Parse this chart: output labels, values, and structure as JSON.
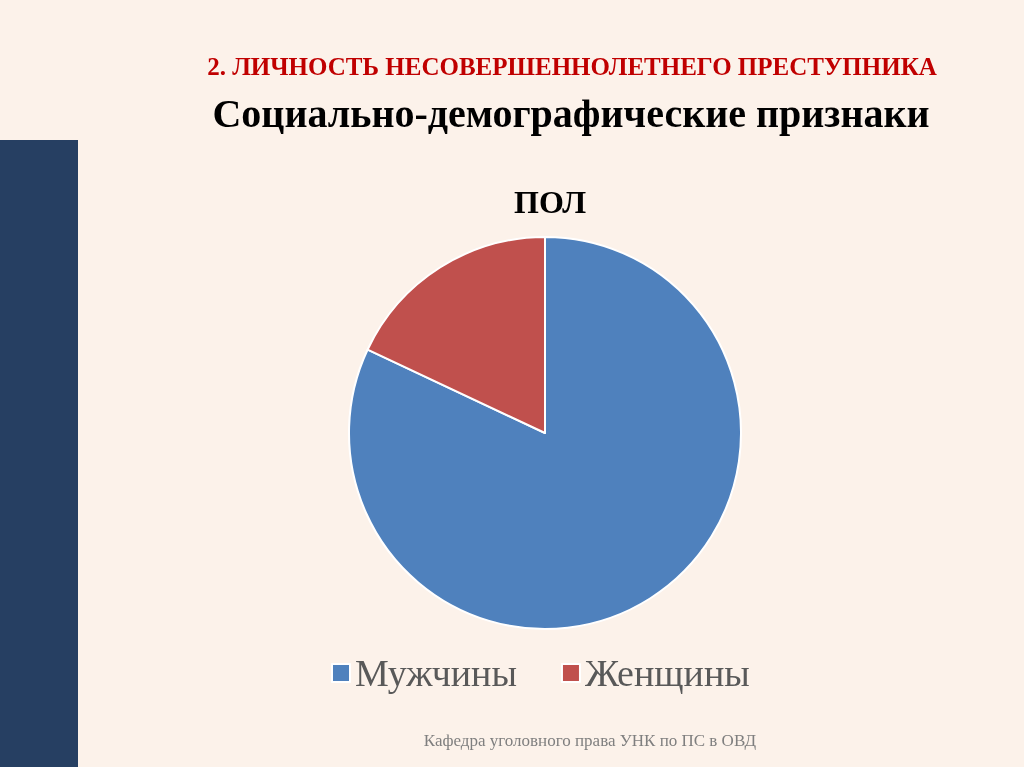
{
  "chart_data": {
    "type": "pie",
    "title": "ПОЛ",
    "annotations": [
      "2. ЛИЧНОСТЬ НЕСОВЕРШЕННОЛЕТНЕГО ПРЕСТУПНИКА",
      "Социально-демографические признаки",
      "Кафедра уголовного права УНК по ПС в ОВД"
    ],
    "categories": [
      "Мужчины",
      "Женщины"
    ],
    "values": [
      82,
      18
    ],
    "colors": [
      "#4f81bd",
      "#c0504d"
    ],
    "legend": "bottom"
  }
}
